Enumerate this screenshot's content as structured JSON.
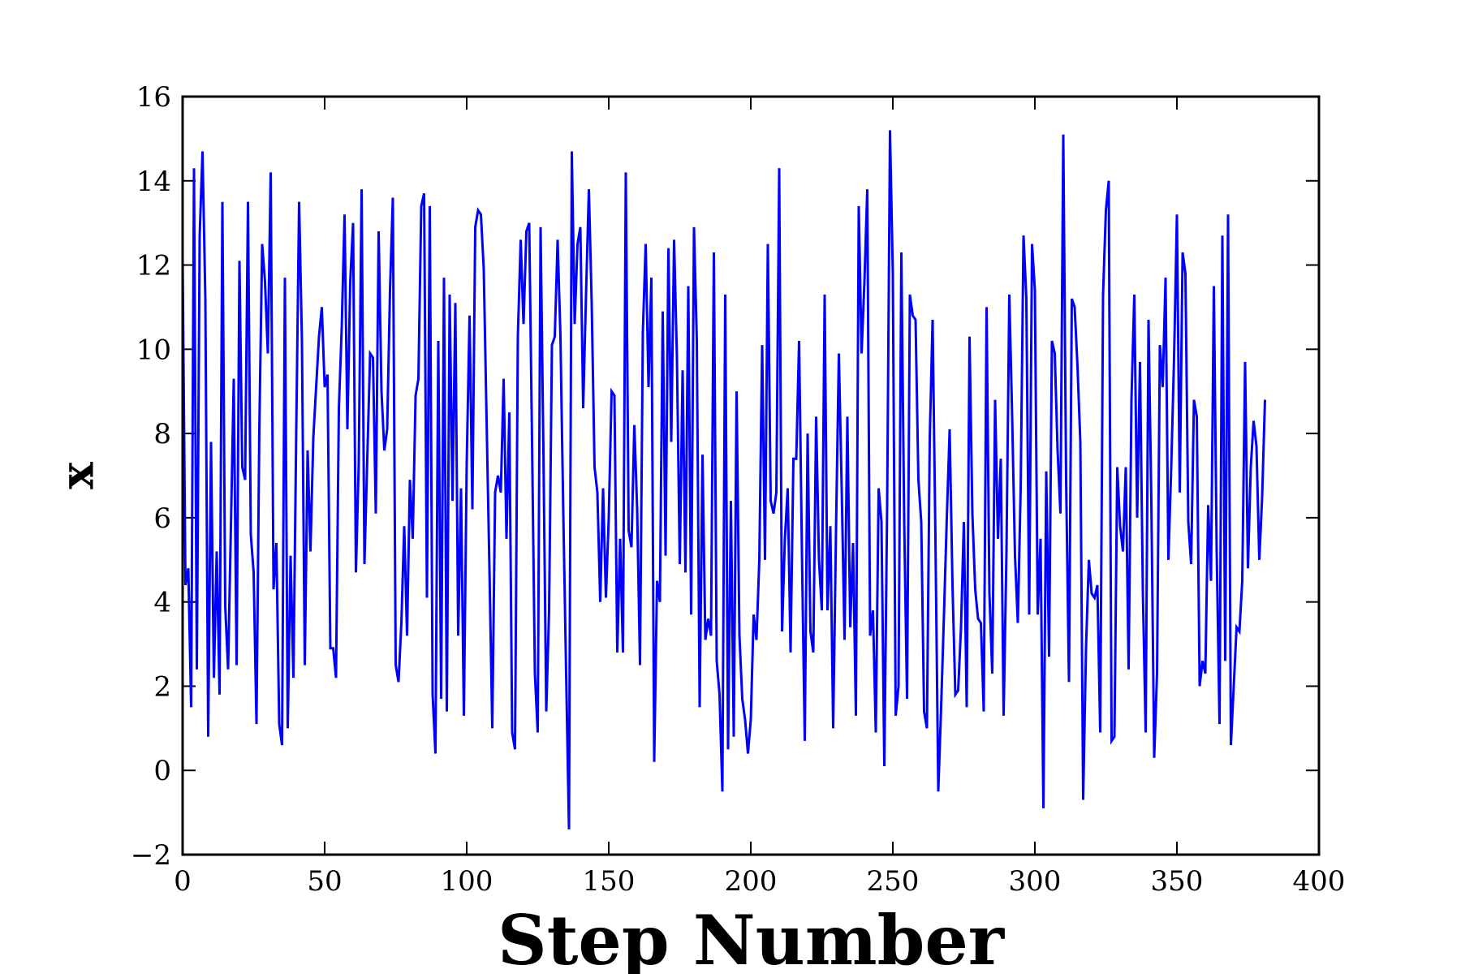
{
  "chart_data": {
    "type": "line",
    "title": "",
    "xlabel": "Step Number",
    "ylabel": "x",
    "xlim": [
      0,
      400
    ],
    "ylim": [
      -2,
      16
    ],
    "xticks": [
      0,
      50,
      100,
      150,
      200,
      250,
      300,
      350,
      400
    ],
    "yticks": [
      -2,
      0,
      2,
      4,
      6,
      8,
      10,
      12,
      14,
      16
    ],
    "xtick_labels": [
      "0",
      "50",
      "100",
      "150",
      "200",
      "250",
      "300",
      "350",
      "400"
    ],
    "ytick_labels": [
      "−2",
      "0",
      "2",
      "4",
      "6",
      "8",
      "10",
      "12",
      "14",
      "16"
    ],
    "grid": false,
    "legend": "none",
    "series": [
      {
        "color": "#0000ff",
        "x": [
          0,
          1,
          2,
          3,
          4,
          5,
          6,
          7,
          8,
          9,
          10,
          11,
          12,
          13,
          14,
          15,
          16,
          17,
          18,
          19,
          20,
          21,
          22,
          23,
          24,
          25,
          26,
          27,
          28,
          29,
          30,
          31,
          32,
          33,
          34,
          35,
          36,
          37,
          38,
          39,
          40,
          41,
          42,
          43,
          44,
          45,
          46,
          47,
          48,
          49,
          50,
          51,
          52,
          53,
          54,
          55,
          56,
          57,
          58,
          59,
          60,
          61,
          62,
          63,
          64,
          65,
          66,
          67,
          68,
          69,
          70,
          71,
          72,
          73,
          74,
          75,
          76,
          77,
          78,
          79,
          80,
          81,
          82,
          83,
          84,
          85,
          86,
          87,
          88,
          89,
          90,
          91,
          92,
          93,
          94,
          95,
          96,
          97,
          98,
          99,
          100,
          101,
          102,
          103,
          104,
          105,
          106,
          107,
          108,
          109,
          110,
          111,
          112,
          113,
          114,
          115,
          116,
          117,
          118,
          119,
          120,
          121,
          122,
          123,
          124,
          125,
          126,
          127,
          128,
          129,
          130,
          131,
          132,
          133,
          134,
          135,
          136,
          137,
          138,
          139,
          140,
          141,
          142,
          143,
          144,
          145,
          146,
          147,
          148,
          149,
          150,
          151,
          152,
          153,
          154,
          155,
          156,
          157,
          158,
          159,
          160,
          161,
          162,
          163,
          164,
          165,
          166,
          167,
          168,
          169,
          170,
          171,
          172,
          173,
          174,
          175,
          176,
          177,
          178,
          179,
          180,
          181,
          182,
          183,
          184,
          185,
          186,
          187,
          188,
          189,
          190,
          191,
          192,
          193,
          194,
          195,
          196,
          197,
          198,
          199,
          200,
          201,
          202,
          203,
          204,
          205,
          206,
          207,
          208,
          209,
          210,
          211,
          212,
          213,
          214,
          215,
          216,
          217,
          218,
          219,
          220,
          221,
          222,
          223,
          224,
          225,
          226,
          227,
          228,
          229,
          230,
          231,
          232,
          233,
          234,
          235,
          236,
          237,
          238,
          239,
          240,
          241,
          242,
          243,
          244,
          245,
          246,
          247,
          248,
          249,
          250,
          251,
          252,
          253,
          254,
          255,
          256,
          257,
          258,
          259,
          260,
          261,
          262,
          263,
          264,
          265,
          266,
          267,
          268,
          269,
          270,
          271,
          272,
          273,
          274,
          275,
          276,
          277,
          278,
          279,
          280,
          281,
          282,
          283,
          284,
          285,
          286,
          287,
          288,
          289,
          290,
          291,
          292,
          293,
          294,
          295,
          296,
          297,
          298,
          299,
          300,
          301,
          302,
          303,
          304,
          305,
          306,
          307,
          308,
          309,
          310,
          311,
          312,
          313,
          314,
          315,
          316,
          317,
          318,
          319,
          320,
          321,
          322,
          323,
          324,
          325,
          326,
          327,
          328,
          329,
          330,
          331,
          332,
          333,
          334,
          335,
          336,
          337,
          338,
          339,
          340,
          341,
          342,
          343,
          344,
          345,
          346,
          347,
          348,
          349,
          350,
          351,
          352,
          353,
          354,
          355,
          356,
          357,
          358,
          359,
          360,
          361,
          362,
          363,
          364,
          365,
          366,
          367,
          368,
          369,
          370,
          371,
          372,
          373,
          374,
          375,
          376,
          377,
          378,
          379,
          380,
          381
        ],
        "y": [
          12.1,
          4.4,
          4.8,
          1.5,
          14.3,
          2.4,
          12.7,
          14.7,
          11.2,
          0.8,
          7.8,
          2.2,
          5.2,
          1.8,
          13.5,
          3.9,
          2.4,
          5.8,
          9.3,
          2.5,
          12.1,
          7.2,
          6.9,
          13.5,
          5.6,
          4.7,
          1.1,
          8.1,
          12.5,
          11.6,
          9.9,
          14.2,
          4.3,
          5.4,
          1.1,
          0.6,
          11.7,
          1.0,
          5.1,
          2.2,
          8.1,
          13.5,
          10.2,
          2.5,
          7.6,
          5.2,
          7.9,
          9.1,
          10.3,
          11.0,
          9.1,
          9.4,
          2.9,
          2.9,
          2.2,
          8.6,
          10.5,
          13.2,
          8.1,
          11.6,
          13.0,
          4.7,
          7.3,
          13.8,
          4.9,
          7.4,
          9.9,
          9.8,
          6.1,
          12.8,
          9.0,
          7.6,
          8.1,
          11.4,
          13.6,
          2.5,
          2.1,
          3.5,
          5.8,
          3.2,
          6.9,
          5.5,
          8.9,
          9.3,
          13.4,
          13.7,
          4.1,
          13.4,
          1.8,
          0.4,
          10.2,
          1.7,
          11.7,
          1.4,
          11.3,
          6.4,
          11.1,
          3.2,
          6.7,
          1.3,
          7.3,
          10.8,
          6.2,
          12.9,
          13.3,
          13.2,
          11.9,
          8.3,
          4.8,
          1.0,
          6.6,
          7.0,
          6.6,
          9.3,
          5.5,
          8.5,
          0.9,
          0.5,
          10.3,
          12.6,
          10.6,
          12.8,
          13.0,
          7.8,
          2.3,
          0.9,
          12.9,
          7.6,
          1.4,
          3.8,
          10.1,
          10.3,
          12.6,
          10.3,
          6.1,
          2.3,
          -1.4,
          14.7,
          10.6,
          12.5,
          12.9,
          8.6,
          11.3,
          13.8,
          11.1,
          7.2,
          6.6,
          4.0,
          6.7,
          4.1,
          6.0,
          9.0,
          8.9,
          2.8,
          5.5,
          2.8,
          14.2,
          5.7,
          5.3,
          8.2,
          6.2,
          2.5,
          10.4,
          12.5,
          9.1,
          11.7,
          0.2,
          4.5,
          4.0,
          10.9,
          5.1,
          12.4,
          7.8,
          12.6,
          9.8,
          4.9,
          9.5,
          4.7,
          11.5,
          3.7,
          12.9,
          10.2,
          1.5,
          7.5,
          3.1,
          3.6,
          3.2,
          12.3,
          2.6,
          1.8,
          -0.5,
          11.3,
          0.5,
          6.4,
          0.8,
          9.0,
          3.2,
          1.7,
          1.2,
          0.4,
          1.2,
          3.7,
          3.1,
          5.0,
          10.1,
          5.0,
          12.5,
          6.4,
          6.1,
          6.6,
          14.3,
          3.3,
          5.5,
          6.7,
          2.8,
          7.4,
          7.4,
          10.2,
          5.2,
          0.7,
          8.0,
          3.3,
          2.8,
          8.4,
          5.0,
          3.8,
          11.3,
          3.8,
          5.8,
          1.0,
          5.7,
          9.9,
          6.7,
          3.1,
          8.4,
          3.4,
          5.4,
          1.3,
          13.4,
          9.9,
          11.6,
          13.8,
          3.2,
          3.8,
          0.9,
          6.7,
          5.9,
          0.1,
          6.3,
          15.2,
          11.8,
          1.3,
          2.0,
          12.3,
          5.9,
          1.7,
          11.3,
          10.8,
          10.7,
          6.9,
          5.9,
          1.4,
          1.0,
          7.9,
          10.7,
          5.5,
          -0.5,
          1.5,
          3.7,
          6.0,
          8.1,
          4.4,
          1.8,
          1.9,
          3.4,
          5.9,
          1.5,
          10.3,
          6.1,
          4.3,
          3.6,
          3.5,
          1.4,
          11.0,
          4.2,
          2.3,
          8.8,
          5.5,
          7.4,
          1.3,
          5.2,
          11.3,
          8.4,
          5.1,
          3.5,
          6.7,
          12.7,
          11.2,
          3.7,
          12.5,
          11.4,
          3.7,
          5.5,
          -0.9,
          7.1,
          2.7,
          10.2,
          9.9,
          7.6,
          6.1,
          15.1,
          6.9,
          2.1,
          11.2,
          11.0,
          9.6,
          7.8,
          -0.7,
          2.9,
          5.0,
          4.2,
          4.1,
          4.4,
          0.9,
          11.3,
          13.3,
          14.0,
          0.7,
          0.8,
          7.2,
          5.8,
          5.2,
          7.2,
          2.4,
          8.8,
          11.3,
          6.0,
          9.7,
          4.3,
          0.9,
          10.7,
          6.4,
          0.3,
          2.3,
          10.1,
          9.1,
          11.7,
          5.0,
          7.2,
          9.8,
          13.2,
          6.6,
          12.3,
          11.8,
          5.9,
          4.9,
          8.8,
          8.4,
          2.0,
          2.6,
          2.3,
          6.3,
          4.5,
          11.5,
          5.2,
          1.1,
          12.7,
          2.6,
          13.2,
          0.6,
          2.0,
          3.4,
          3.3,
          4.5,
          9.7,
          4.8,
          7.2,
          8.3,
          7.7,
          5.0,
          6.5,
          8.8
        ]
      }
    ]
  }
}
